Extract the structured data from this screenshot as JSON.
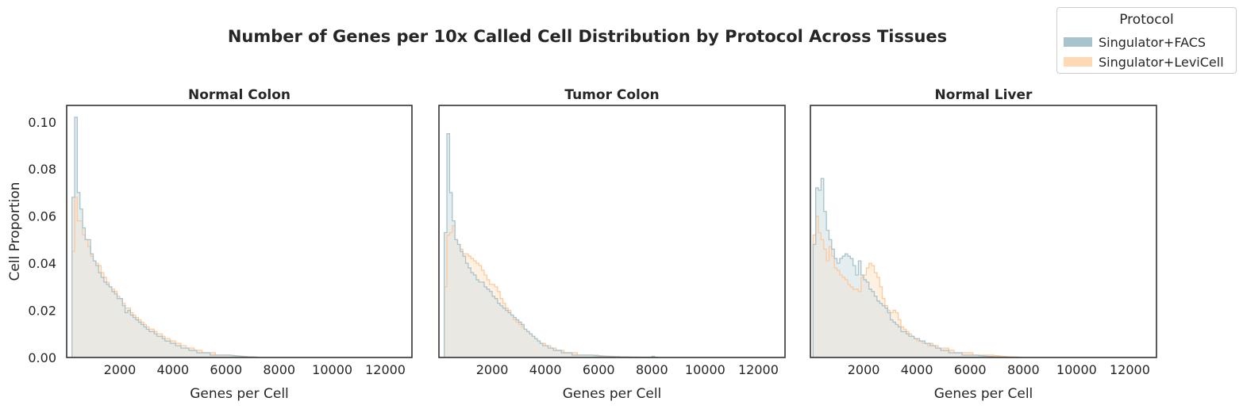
{
  "figure": {
    "title": "Number of Genes per 10x Called Cell Distribution by Protocol Across Tissues"
  },
  "legend": {
    "title": "Protocol",
    "placement": "upper-right",
    "items": [
      {
        "label": "Singulator+FACS",
        "color": "#a8c3cc"
      },
      {
        "label": "Singulator+LeviCell",
        "color": "#ffd9b5"
      }
    ]
  },
  "colors": {
    "facs_line": "#a8c3cc",
    "facs_fill": "#e4eef1",
    "levi_line": "#ffc99a",
    "levi_fill": "#fff1e2",
    "overlap_fill": "#e9e8e3"
  },
  "chart_data": [
    {
      "type": "histogram-step",
      "title": "Normal Colon",
      "xlabel": "Genes per Cell",
      "ylabel": "Cell Proportion",
      "xlim": [
        0,
        13000
      ],
      "ylim": [
        0,
        0.107
      ],
      "xticks": [
        2000,
        4000,
        6000,
        8000,
        10000,
        12000
      ],
      "yticks": [
        0.0,
        0.02,
        0.04,
        0.06,
        0.08,
        0.1
      ],
      "ytick_labels": [
        "0.00",
        "0.02",
        "0.04",
        "0.06",
        "0.08",
        "0.10"
      ],
      "grid": false,
      "bin_start": 200,
      "bin_width": 100,
      "series": [
        {
          "name": "Singulator+FACS",
          "values": [
            0.068,
            0.102,
            0.07,
            0.063,
            0.055,
            0.05,
            0.05,
            0.044,
            0.041,
            0.039,
            0.036,
            0.034,
            0.032,
            0.031,
            0.03,
            0.028,
            0.027,
            0.025,
            0.025,
            0.022,
            0.019,
            0.02,
            0.018,
            0.017,
            0.016,
            0.015,
            0.014,
            0.013,
            0.012,
            0.011,
            0.011,
            0.01,
            0.009,
            0.009,
            0.008,
            0.007,
            0.007,
            0.006,
            0.006,
            0.005,
            0.005,
            0.004,
            0.004,
            0.004,
            0.003,
            0.003,
            0.003,
            0.002,
            0.002,
            0.002,
            0.002,
            0.002,
            0.001,
            0.001,
            0.001,
            0.001,
            0.001,
            0.001,
            0.001,
            0.001,
            0.0008,
            0.0007,
            0.0006,
            0.0005,
            0.0004,
            0.0003,
            0.0003,
            0.0002,
            0.0002,
            0.0001
          ]
        },
        {
          "name": "Singulator+LeviCell",
          "values": [
            0.045,
            0.068,
            0.058,
            0.058,
            0.052,
            0.05,
            0.047,
            0.043,
            0.041,
            0.04,
            0.039,
            0.036,
            0.034,
            0.032,
            0.03,
            0.029,
            0.028,
            0.026,
            0.025,
            0.023,
            0.021,
            0.021,
            0.019,
            0.018,
            0.017,
            0.016,
            0.015,
            0.014,
            0.013,
            0.012,
            0.012,
            0.011,
            0.01,
            0.01,
            0.009,
            0.008,
            0.008,
            0.007,
            0.007,
            0.006,
            0.006,
            0.005,
            0.005,
            0.004,
            0.004,
            0.004,
            0.003,
            0.003,
            0.003,
            0.002,
            0.002,
            0.002,
            0.002,
            0.002,
            0.001,
            0.001,
            0.001,
            0.001,
            0.001,
            0.001,
            0.0009,
            0.0008,
            0.0007,
            0.0006,
            0.0005,
            0.0004,
            0.0003,
            0.0003,
            0.0002,
            0.0001
          ]
        }
      ]
    },
    {
      "type": "histogram-step",
      "title": "Tumor Colon",
      "xlabel": "Genes per Cell",
      "ylabel": "",
      "xlim": [
        0,
        13000
      ],
      "ylim": [
        0,
        0.107
      ],
      "xticks": [
        2000,
        4000,
        6000,
        8000,
        10000,
        12000
      ],
      "yticks": [],
      "grid": false,
      "bin_start": 200,
      "bin_width": 100,
      "series": [
        {
          "name": "Singulator+FACS",
          "values": [
            0.053,
            0.095,
            0.07,
            0.058,
            0.05,
            0.048,
            0.045,
            0.043,
            0.04,
            0.038,
            0.036,
            0.035,
            0.033,
            0.032,
            0.032,
            0.03,
            0.029,
            0.028,
            0.026,
            0.025,
            0.023,
            0.022,
            0.021,
            0.02,
            0.019,
            0.018,
            0.017,
            0.016,
            0.015,
            0.014,
            0.012,
            0.011,
            0.01,
            0.009,
            0.008,
            0.007,
            0.006,
            0.005,
            0.005,
            0.004,
            0.004,
            0.003,
            0.003,
            0.003,
            0.002,
            0.002,
            0.002,
            0.002,
            0.001,
            0.001,
            0.001,
            0.001,
            0.001,
            0.001,
            0.001,
            0.001,
            0.0008,
            0.0007,
            0.0006,
            0.0005,
            0.0005,
            0.0004,
            0.0004,
            0.0003,
            0.0003,
            0.0003,
            0.0002,
            0.0002,
            0.0002,
            0.0002,
            0.0001,
            0.0001,
            0.0001,
            0.0001,
            0.0001,
            0.0001,
            0.0001,
            0.0001,
            0.0005,
            0.0001
          ]
        },
        {
          "name": "Singulator+LeviCell",
          "values": [
            0.03,
            0.052,
            0.053,
            0.056,
            0.05,
            0.048,
            0.046,
            0.044,
            0.044,
            0.043,
            0.042,
            0.041,
            0.04,
            0.039,
            0.037,
            0.035,
            0.033,
            0.031,
            0.031,
            0.03,
            0.028,
            0.025,
            0.023,
            0.021,
            0.02,
            0.018,
            0.016,
            0.015,
            0.014,
            0.013,
            0.012,
            0.011,
            0.01,
            0.009,
            0.008,
            0.007,
            0.006,
            0.006,
            0.005,
            0.005,
            0.004,
            0.004,
            0.003,
            0.003,
            0.003,
            0.002,
            0.002,
            0.002,
            0.002,
            0.002,
            0.001,
            0.001,
            0.001,
            0.001,
            0.001,
            0.001,
            0.001,
            0.001,
            0.0008,
            0.0007,
            0.0006,
            0.0006,
            0.0005,
            0.0005,
            0.0004,
            0.0004,
            0.0003,
            0.0003,
            0.0003,
            0.0002,
            0.0002,
            0.0002,
            0.0002,
            0.0001,
            0.0001,
            0.0001,
            0.0001,
            0.0001,
            0.0001,
            0.0001
          ]
        }
      ]
    },
    {
      "type": "histogram-step",
      "title": "Normal Liver",
      "xlabel": "Genes per Cell",
      "ylabel": "",
      "xlim": [
        0,
        13000
      ],
      "ylim": [
        0,
        0.107
      ],
      "xticks": [
        2000,
        4000,
        6000,
        8000,
        10000,
        12000
      ],
      "yticks": [],
      "grid": false,
      "bin_start": 100,
      "bin_width": 100,
      "series": [
        {
          "name": "Singulator+FACS",
          "values": [
            0.048,
            0.072,
            0.071,
            0.076,
            0.062,
            0.054,
            0.05,
            0.046,
            0.042,
            0.04,
            0.042,
            0.043,
            0.044,
            0.043,
            0.042,
            0.039,
            0.035,
            0.041,
            0.035,
            0.033,
            0.032,
            0.029,
            0.028,
            0.026,
            0.024,
            0.023,
            0.022,
            0.021,
            0.019,
            0.016,
            0.015,
            0.014,
            0.013,
            0.011,
            0.011,
            0.01,
            0.009,
            0.009,
            0.008,
            0.008,
            0.007,
            0.007,
            0.006,
            0.006,
            0.005,
            0.005,
            0.004,
            0.004,
            0.003,
            0.003,
            0.003,
            0.002,
            0.002,
            0.002,
            0.002,
            0.002,
            0.001,
            0.001,
            0.001,
            0.001,
            0.001,
            0.001,
            0.0008,
            0.0007,
            0.0006,
            0.0005,
            0.0004,
            0.0004,
            0.0003,
            0.0003,
            0.0002,
            0.0002,
            0.0002,
            0.0001,
            0.0001,
            0.0001,
            0.0001,
            0.0001
          ]
        },
        {
          "name": "Singulator+LeviCell",
          "values": [
            0.052,
            0.06,
            0.053,
            0.05,
            0.046,
            0.041,
            0.047,
            0.043,
            0.038,
            0.037,
            0.035,
            0.034,
            0.033,
            0.031,
            0.03,
            0.029,
            0.029,
            0.028,
            0.034,
            0.035,
            0.038,
            0.04,
            0.039,
            0.036,
            0.034,
            0.03,
            0.025,
            0.022,
            0.02,
            0.019,
            0.02,
            0.019,
            0.016,
            0.013,
            0.012,
            0.011,
            0.01,
            0.009,
            0.008,
            0.007,
            0.007,
            0.006,
            0.006,
            0.005,
            0.006,
            0.005,
            0.005,
            0.004,
            0.004,
            0.004,
            0.004,
            0.003,
            0.003,
            0.002,
            0.002,
            0.002,
            0.002,
            0.002,
            0.002,
            0.002,
            0.001,
            0.001,
            0.001,
            0.001,
            0.001,
            0.001,
            0.001,
            0.001,
            0.0008,
            0.0007,
            0.0006,
            0.0005,
            0.0004,
            0.0003,
            0.0003,
            0.0002,
            0.0002,
            0.0001
          ]
        }
      ]
    }
  ]
}
